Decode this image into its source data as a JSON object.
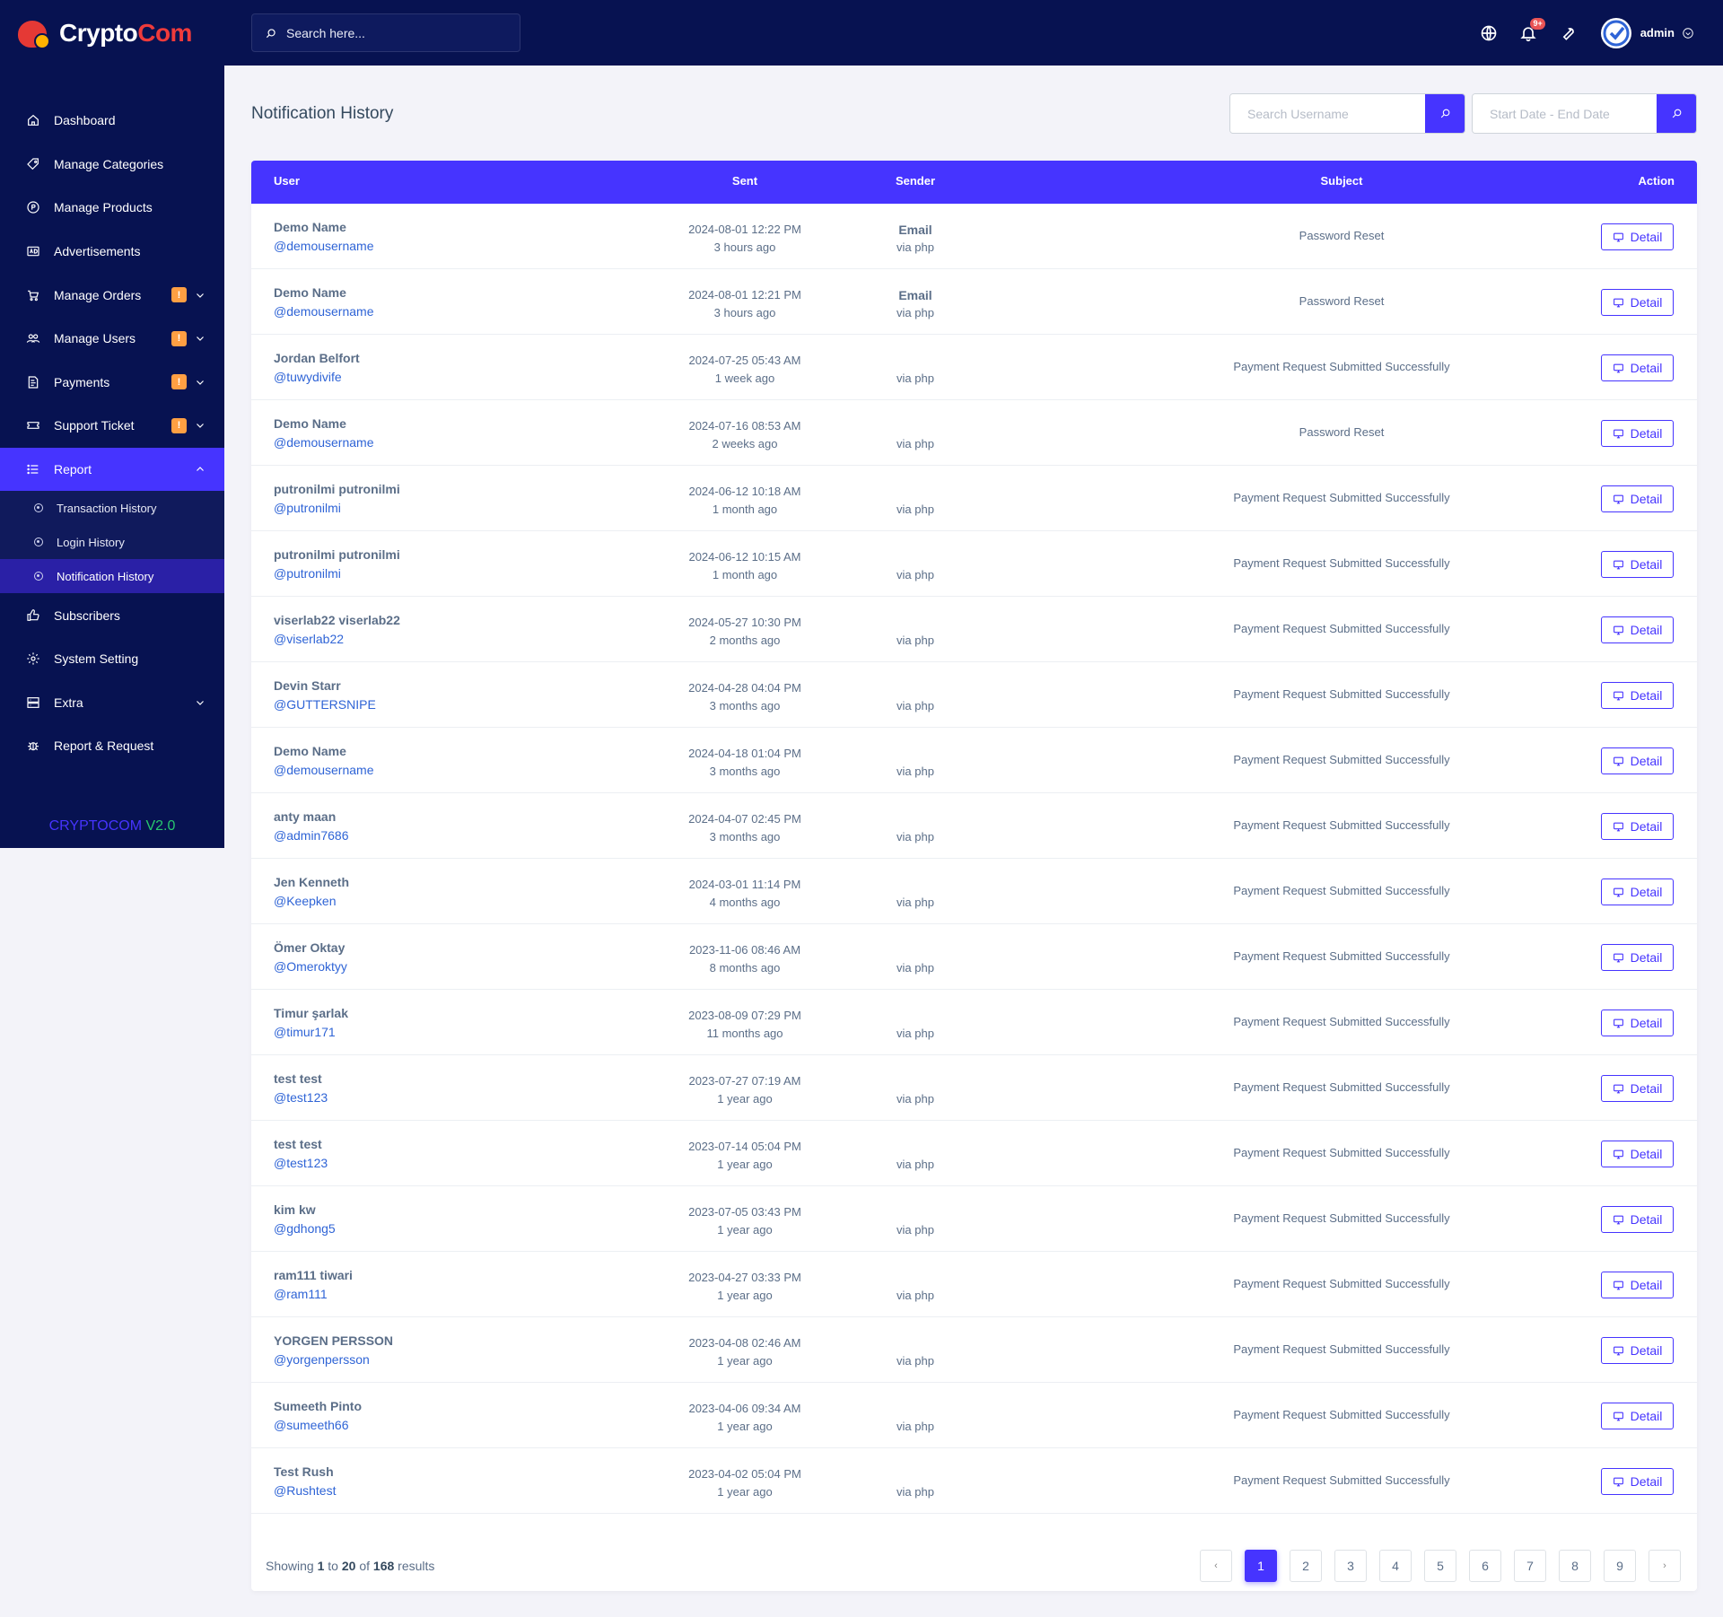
{
  "brand": {
    "part1": "Crypto",
    "part2": "Com"
  },
  "sidebar": {
    "items": [
      {
        "label": "Dashboard",
        "icon": "home-icon"
      },
      {
        "label": "Manage Categories",
        "icon": "tag-icon"
      },
      {
        "label": "Manage Products",
        "icon": "product-icon"
      },
      {
        "label": "Advertisements",
        "icon": "ad-icon"
      },
      {
        "label": "Manage Orders",
        "icon": "cart-icon",
        "badge": "!"
      },
      {
        "label": "Manage Users",
        "icon": "users-icon",
        "badge": "!"
      },
      {
        "label": "Payments",
        "icon": "invoice-icon",
        "badge": "!"
      },
      {
        "label": "Support Ticket",
        "icon": "ticket-icon",
        "badge": "!"
      },
      {
        "label": "Report",
        "icon": "list-icon"
      }
    ],
    "report_sub": [
      {
        "label": "Transaction History"
      },
      {
        "label": "Login History"
      },
      {
        "label": "Notification History"
      }
    ],
    "items_after": [
      {
        "label": "Subscribers",
        "icon": "thumbs-up-icon"
      },
      {
        "label": "System Setting",
        "icon": "gear-icon"
      },
      {
        "label": "Extra",
        "icon": "server-icon"
      },
      {
        "label": "Report & Request",
        "icon": "bug-icon"
      }
    ],
    "version_a": "CRYPTOCOM",
    "version_b": "V2.0"
  },
  "topbar": {
    "search_placeholder": "Search here...",
    "notif_badge": "9+",
    "admin": "admin"
  },
  "page": {
    "title": "Notification History",
    "search_username_placeholder": "Search Username",
    "date_placeholder": "Start Date - End Date"
  },
  "table": {
    "headers": {
      "user": "User",
      "sent": "Sent",
      "sender": "Sender",
      "subject": "Subject",
      "action": "Action"
    },
    "detail_label": "Detail",
    "rows": [
      {
        "name": "Demo Name",
        "handle": "@demousername",
        "date": "2024-08-01 12:22 PM",
        "ago": "3 hours ago",
        "email": "Email",
        "via": "via php",
        "subject": "Password Reset"
      },
      {
        "name": "Demo Name",
        "handle": "@demousername",
        "date": "2024-08-01 12:21 PM",
        "ago": "3 hours ago",
        "email": "Email",
        "via": "via php",
        "subject": "Password Reset"
      },
      {
        "name": "Jordan Belfort",
        "handle": "@tuwydivife",
        "date": "2024-07-25 05:43 AM",
        "ago": "1 week ago",
        "email": "",
        "via": "via php",
        "subject": "Payment Request Submitted Successfully"
      },
      {
        "name": "Demo Name",
        "handle": "@demousername",
        "date": "2024-07-16 08:53 AM",
        "ago": "2 weeks ago",
        "email": "",
        "via": "via php",
        "subject": "Password Reset"
      },
      {
        "name": "putronilmi putronilmi",
        "handle": "@putronilmi",
        "date": "2024-06-12 10:18 AM",
        "ago": "1 month ago",
        "email": "",
        "via": "via php",
        "subject": "Payment Request Submitted Successfully"
      },
      {
        "name": "putronilmi putronilmi",
        "handle": "@putronilmi",
        "date": "2024-06-12 10:15 AM",
        "ago": "1 month ago",
        "email": "",
        "via": "via php",
        "subject": "Payment Request Submitted Successfully"
      },
      {
        "name": "viserlab22 viserlab22",
        "handle": "@viserlab22",
        "date": "2024-05-27 10:30 PM",
        "ago": "2 months ago",
        "email": "",
        "via": "via php",
        "subject": "Payment Request Submitted Successfully"
      },
      {
        "name": "Devin Starr",
        "handle": "@GUTTERSNIPE",
        "date": "2024-04-28 04:04 PM",
        "ago": "3 months ago",
        "email": "",
        "via": "via php",
        "subject": "Payment Request Submitted Successfully"
      },
      {
        "name": "Demo Name",
        "handle": "@demousername",
        "date": "2024-04-18 01:04 PM",
        "ago": "3 months ago",
        "email": "",
        "via": "via php",
        "subject": "Payment Request Submitted Successfully"
      },
      {
        "name": "anty maan",
        "handle": "@admin7686",
        "date": "2024-04-07 02:45 PM",
        "ago": "3 months ago",
        "email": "",
        "via": "via php",
        "subject": "Payment Request Submitted Successfully"
      },
      {
        "name": "Jen Kenneth",
        "handle": "@Keepken",
        "date": "2024-03-01 11:14 PM",
        "ago": "4 months ago",
        "email": "",
        "via": "via php",
        "subject": "Payment Request Submitted Successfully"
      },
      {
        "name": "Ömer Oktay",
        "handle": "@Omeroktyy",
        "date": "2023-11-06 08:46 AM",
        "ago": "8 months ago",
        "email": "",
        "via": "via php",
        "subject": "Payment Request Submitted Successfully"
      },
      {
        "name": "Timur şarlak",
        "handle": "@timur171",
        "date": "2023-08-09 07:29 PM",
        "ago": "11 months ago",
        "email": "",
        "via": "via php",
        "subject": "Payment Request Submitted Successfully"
      },
      {
        "name": "test test",
        "handle": "@test123",
        "date": "2023-07-27 07:19 AM",
        "ago": "1 year ago",
        "email": "",
        "via": "via php",
        "subject": "Payment Request Submitted Successfully"
      },
      {
        "name": "test test",
        "handle": "@test123",
        "date": "2023-07-14 05:04 PM",
        "ago": "1 year ago",
        "email": "",
        "via": "via php",
        "subject": "Payment Request Submitted Successfully"
      },
      {
        "name": "kim kw",
        "handle": "@gdhong5",
        "date": "2023-07-05 03:43 PM",
        "ago": "1 year ago",
        "email": "",
        "via": "via php",
        "subject": "Payment Request Submitted Successfully"
      },
      {
        "name": "ram111 tiwari",
        "handle": "@ram111",
        "date": "2023-04-27 03:33 PM",
        "ago": "1 year ago",
        "email": "",
        "via": "via php",
        "subject": "Payment Request Submitted Successfully"
      },
      {
        "name": "YORGEN PERSSON",
        "handle": "@yorgenpersson",
        "date": "2023-04-08 02:46 AM",
        "ago": "1 year ago",
        "email": "",
        "via": "via php",
        "subject": "Payment Request Submitted Successfully"
      },
      {
        "name": "Sumeeth Pinto",
        "handle": "@sumeeth66",
        "date": "2023-04-06 09:34 AM",
        "ago": "1 year ago",
        "email": "",
        "via": "via php",
        "subject": "Payment Request Submitted Successfully"
      },
      {
        "name": "Test Rush",
        "handle": "@Rushtest",
        "date": "2023-04-02 05:04 PM",
        "ago": "1 year ago",
        "email": "",
        "via": "via php",
        "subject": "Payment Request Submitted Successfully"
      }
    ]
  },
  "footer": {
    "showing_prefix": "Showing",
    "from": "1",
    "to_word": "to",
    "to": "20",
    "of_word": "of",
    "total": "168",
    "results_word": "results",
    "prev": "‹",
    "next": "›",
    "pages": [
      "1",
      "2",
      "3",
      "4",
      "5",
      "6",
      "7",
      "8",
      "9"
    ]
  },
  "colors": {
    "primary": "#4634ff",
    "sidebar": "#071251",
    "warning": "#ff9f43",
    "success": "#28c76f",
    "brand_red": "#ef3b3b"
  }
}
